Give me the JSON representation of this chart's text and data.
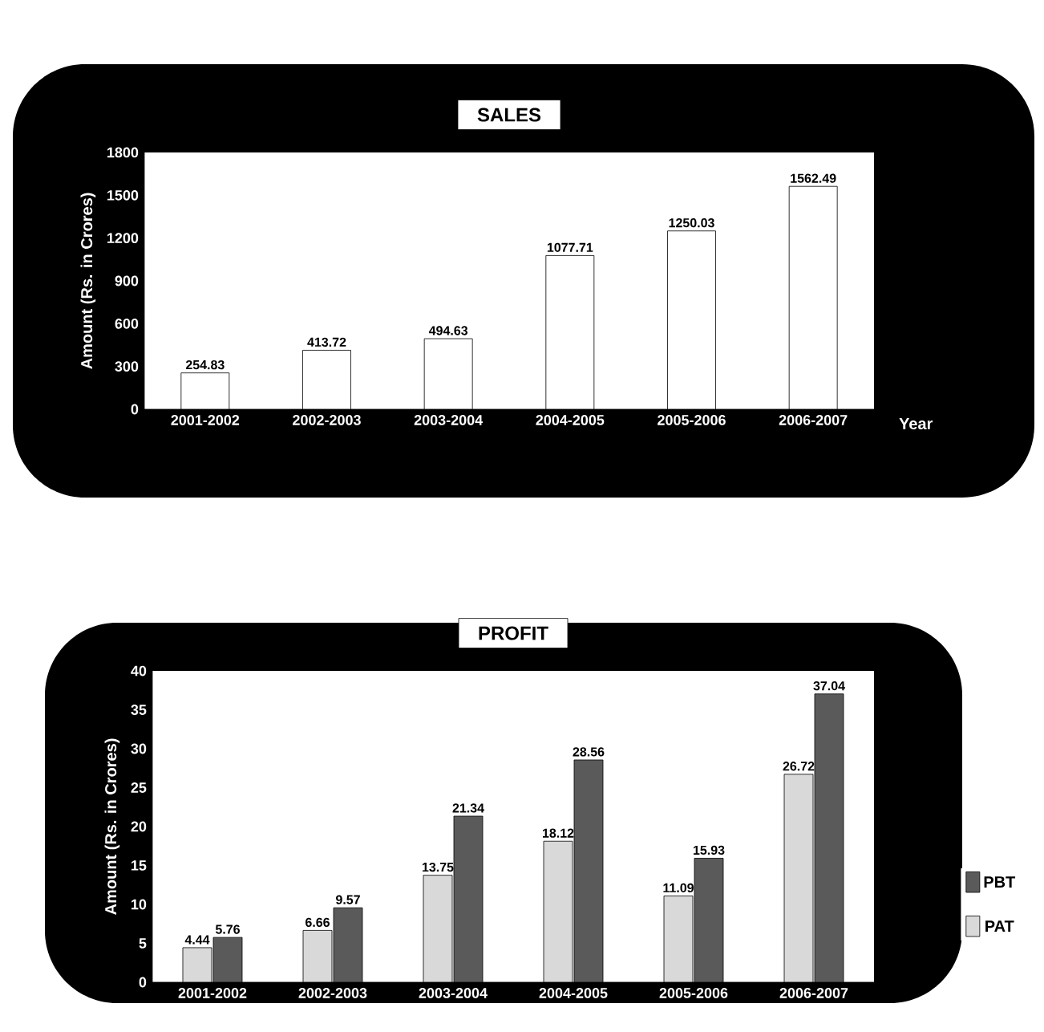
{
  "chart_data": [
    {
      "type": "bar",
      "title": "SALES",
      "xlabel": "Year",
      "ylabel": "Amount (Rs. in Crores)",
      "categories": [
        "2001-2002",
        "2002-2003",
        "2003-2004",
        "2004-2005",
        "2005-2006",
        "2006-2007"
      ],
      "series": [
        {
          "color": "#ffffff",
          "values": [
            254.83,
            413.72,
            494.63,
            1077.71,
            1250.03,
            1562.49
          ]
        }
      ],
      "ylim": [
        0,
        1800
      ],
      "yticks": [
        0,
        300,
        600,
        900,
        1200,
        1500,
        1800
      ],
      "data_labels": true
    },
    {
      "type": "bar",
      "title": "PROFIT",
      "ylabel": "Amount (Rs. in Crores)",
      "categories": [
        "2001-2002",
        "2002-2003",
        "2003-2004",
        "2004-2005",
        "2005-2006",
        "2006-2007"
      ],
      "series": [
        {
          "name": "PAT",
          "color": "#d9d9d9",
          "values": [
            4.44,
            6.66,
            13.75,
            18.12,
            11.09,
            26.72
          ]
        },
        {
          "name": "PBT",
          "color": "#5a5a5a",
          "values": [
            5.76,
            9.57,
            21.34,
            28.56,
            15.93,
            37.04
          ]
        }
      ],
      "ylim": [
        0,
        40
      ],
      "yticks": [
        0,
        5,
        10,
        15,
        20,
        25,
        30,
        35,
        40
      ],
      "data_labels": true,
      "legend": "right"
    }
  ]
}
